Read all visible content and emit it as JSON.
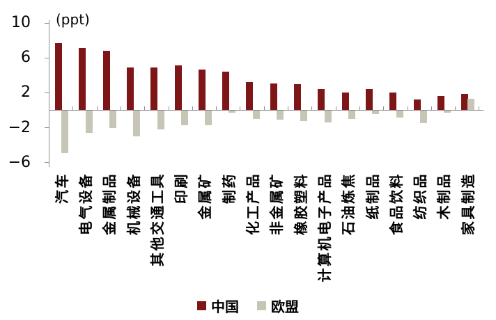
{
  "chart_data": {
    "type": "bar",
    "unit_label": "(ppt)",
    "categories": [
      "汽车",
      "电气设备",
      "金属制品",
      "机械设备",
      "其他交通工具",
      "印刷",
      "金属矿",
      "制药",
      "化工产品",
      "非金属矿",
      "橡胶塑料",
      "计算机电子产品",
      "石油炼焦",
      "纸制品",
      "食品饮料",
      "纺织品",
      "木制品",
      "家具制造"
    ],
    "series": [
      {
        "name": "中国",
        "color": "#7E1517",
        "values": [
          7.7,
          7.1,
          6.8,
          4.9,
          4.9,
          5.1,
          4.7,
          4.4,
          3.2,
          3.1,
          3.0,
          2.4,
          2.0,
          2.4,
          2.0,
          1.2,
          1.6,
          1.9
        ]
      },
      {
        "name": "欧盟",
        "color": "#C7C5B6",
        "values": [
          -4.9,
          -2.6,
          -2.0,
          -3.0,
          -2.2,
          -1.7,
          -1.7,
          -0.3,
          -1.0,
          -1.1,
          -1.2,
          -1.4,
          -1.0,
          -0.4,
          -0.8,
          -1.5,
          -0.3,
          1.3
        ]
      }
    ],
    "y_ticks": [
      10,
      6,
      2,
      -2,
      -6
    ],
    "y_tick_labels": [
      "10",
      "6",
      "2",
      "−2",
      "−6"
    ],
    "ylim": [
      -6.5,
      10.3
    ],
    "grid": false,
    "legend_position": "bottom"
  }
}
